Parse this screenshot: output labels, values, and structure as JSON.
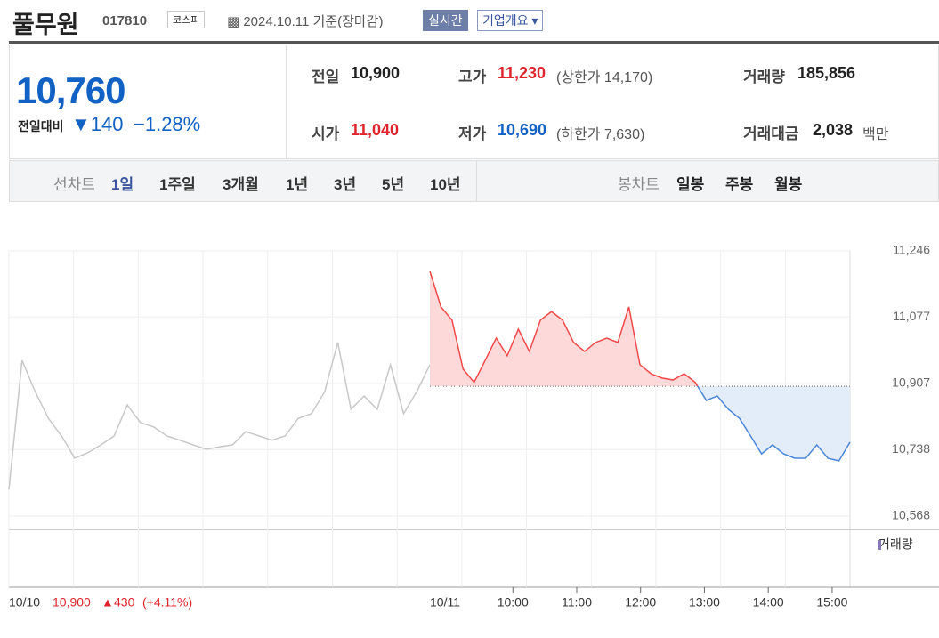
{
  "header": {
    "name": "풀무원",
    "code": "017810",
    "market": "코스피",
    "date": "2024.10.11 기준(장마감)",
    "realtime": "실시간",
    "overview": "기업개요"
  },
  "summary": {
    "price": "10,760",
    "change_label": "전일대비",
    "change": "140",
    "change_pct": "−1.28%",
    "items": [
      {
        "label": "전일",
        "value": "10,900"
      },
      {
        "label": "고가",
        "value": "11,230",
        "note": "(상한가 14,170)"
      },
      {
        "label": "거래량",
        "value": "185,856"
      },
      {
        "label": "시가",
        "value": "11,040"
      },
      {
        "label": "저가",
        "value": "10,690",
        "note": "(하한가 7,630)"
      },
      {
        "label": "거래대금",
        "value": "2,038",
        "note": "백만"
      }
    ]
  },
  "tabs": {
    "line_label": "선차트",
    "line": [
      "1일",
      "1주일",
      "3개월",
      "1년",
      "3년",
      "5년",
      "10년"
    ],
    "candle_label": "봉차트",
    "candle": [
      "일봉",
      "주봉",
      "월봉"
    ]
  },
  "chart_data": {
    "type": "line",
    "ylim": [
      10568,
      11246
    ],
    "yticks": [
      {
        "value": 10568,
        "label": "10,568"
      },
      {
        "value": 10738,
        "label": "10,738"
      },
      {
        "value": 10907,
        "label": "10,907"
      },
      {
        "value": 11077,
        "label": "11,077"
      },
      {
        "value": 11246,
        "label": "11,246"
      }
    ],
    "baseline": 10900,
    "xlim": [
      8.7,
      15.28
    ],
    "xticks": [
      {
        "value": 10,
        "label": "10:00"
      },
      {
        "value": 11,
        "label": "11:00"
      },
      {
        "value": 12,
        "label": "12:00"
      },
      {
        "value": 13,
        "label": "13:00"
      },
      {
        "value": 14,
        "label": "14:00"
      },
      {
        "value": 15,
        "label": "15:00"
      }
    ],
    "series": [
      {
        "name": "10/10",
        "color": "#c8c8c8",
        "values": [
          10636,
          10966,
          10886,
          10818,
          10773,
          10716,
          10730,
          10750,
          10773,
          10852,
          10807,
          10796,
          10773,
          10762,
          10750,
          10739,
          10745,
          10750,
          10784,
          10773,
          10762,
          10773,
          10818,
          10830,
          10886,
          11012,
          10841,
          10875,
          10841,
          10955,
          10830,
          10886,
          10955
        ]
      },
      {
        "name": "10/11",
        "color": "#f04848",
        "color_down": "#4a86d8",
        "values": [
          11194,
          11103,
          11069,
          10944,
          10910,
          10966,
          11023,
          10978,
          11046,
          10989,
          11069,
          11091,
          11069,
          11012,
          10989,
          11012,
          11023,
          11012,
          11103,
          10955,
          10932,
          10921,
          10916,
          10932,
          10910,
          10864,
          10875,
          10841,
          10818,
          10773,
          10727,
          10750,
          10727,
          10716,
          10716,
          10750,
          10716,
          10709,
          10757
        ]
      }
    ],
    "prev_close": "10,900",
    "prev_change": "430",
    "prev_pct": "(+4.11%)",
    "volume_label": "거래량"
  }
}
